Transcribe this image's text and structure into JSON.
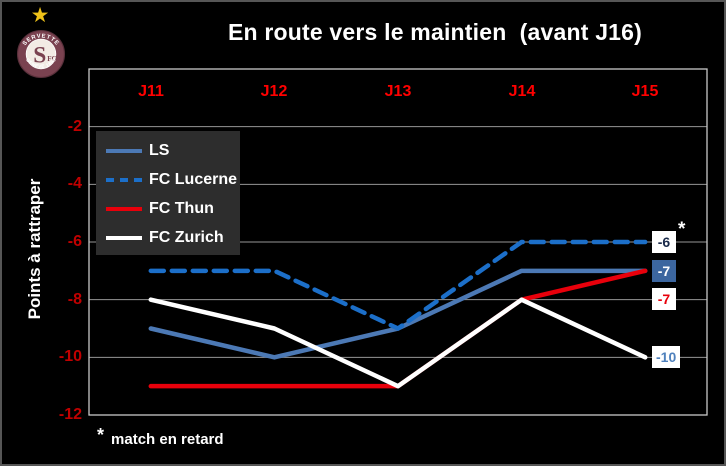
{
  "logo": {
    "star": "★",
    "arc_top": "SERVETTE",
    "initial": "S",
    "fc": "FC",
    "arc_bottom": "GENEVE 1890",
    "ring_color": "#7A4250",
    "inner_color": "#F2EBE4"
  },
  "chart_data": {
    "type": "line",
    "title": "En route vers le maintien  (avant J16)",
    "ylabel": "Points à rattraper",
    "categories": [
      "J11",
      "J12",
      "J13",
      "J14",
      "J15"
    ],
    "y_ticks": [
      "-2",
      "-4",
      "-6",
      "-8",
      "-10",
      "-12"
    ],
    "ylim": [
      -12,
      0
    ],
    "grid": true,
    "legend_position": "upper-left-inside",
    "series": [
      {
        "name": "LS",
        "color": "#4C79B5",
        "style": "solid",
        "values": [
          -9,
          -10,
          -9,
          -7,
          -7
        ],
        "end_label": {
          "text": "-7",
          "bg": "#3C669F",
          "fg": "#FFFFFF"
        }
      },
      {
        "name": "FC Lucerne",
        "color": "#1C6FC9",
        "style": "dashed",
        "values": [
          -7,
          -7,
          -9,
          -6,
          -6
        ],
        "end_label": {
          "text": "-6",
          "bg": "#FFFFFF",
          "fg": "#1A2A4A"
        },
        "annotation": "*"
      },
      {
        "name": "FC Thun",
        "color": "#E8000B",
        "style": "solid",
        "values": [
          -11,
          -11,
          -11,
          -8,
          -7
        ],
        "end_label": {
          "text": "-7",
          "bg": "#FFFFFF",
          "fg": "#E8000B"
        }
      },
      {
        "name": "FC Zurich",
        "color": "#FFFFFF",
        "style": "solid",
        "values": [
          -8,
          -9,
          -11,
          -8,
          -10
        ],
        "end_label": {
          "text": "-10",
          "bg": "#FFFFFF",
          "fg": "#4F81BD"
        }
      }
    ],
    "footnote": {
      "marker": "*",
      "text": "match en retard"
    }
  },
  "colors": {
    "background": "#000000",
    "frame_border": "#565656",
    "plot_border": "#C8C8C8",
    "gridline": "#969696",
    "category_label": "#FF0000",
    "tick_label": "#C00000",
    "title_text": "#FFFFFF"
  }
}
